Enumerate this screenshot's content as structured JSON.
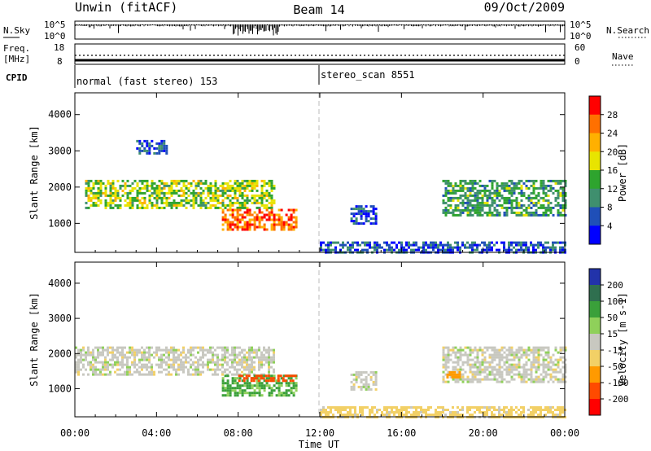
{
  "header": {
    "left_title": "Unwin (fitACF)",
    "center_title": "Beam 14",
    "right_title": "09/Oct/2009"
  },
  "noise_panel": {
    "left_label": "N.Sky",
    "right_label": "N.Search",
    "left_ticks": [
      "10^5",
      "10^0"
    ],
    "right_ticks": [
      "10^5",
      "10^0"
    ]
  },
  "freq_panel": {
    "left_label_1": "Freq.",
    "left_label_2": "[MHz]",
    "right_label": "Nave",
    "left_ticks": [
      "18",
      "8"
    ],
    "right_ticks": [
      "60",
      "0"
    ]
  },
  "cpid_panel": {
    "label": "CPID",
    "segment_1": "normal (fast stereo) 153",
    "segment_2": "stereo_scan 8551"
  },
  "chart_data": [
    {
      "type": "heatmap",
      "name": "Power",
      "ylabel": "Slant Range [km]",
      "colorbar_label": "Power [dB]",
      "y_ticks": [
        1000,
        2000,
        3000,
        4000
      ],
      "ylim": [
        200,
        4600
      ],
      "colorbar_ticks": [
        "28",
        "24",
        "20",
        "16",
        "12",
        "8",
        "4"
      ],
      "colorbar_colors": [
        "#ff0000",
        "#ff7000",
        "#ffb000",
        "#e8e400",
        "#2ea42e",
        "#3f8f6e",
        "#1f4fb8",
        "#0000ff"
      ],
      "regions": [
        {
          "x0": 0.5,
          "x1": 9.8,
          "y0": 1400,
          "y1": 2200,
          "level": 16
        },
        {
          "x0": 3.0,
          "x1": 4.5,
          "y0": 2900,
          "y1": 3300,
          "level": 6
        },
        {
          "x0": 7.2,
          "x1": 10.8,
          "y0": 800,
          "y1": 1400,
          "level": 26
        },
        {
          "x0": 13.5,
          "x1": 14.8,
          "y0": 1000,
          "y1": 1500,
          "level": 6
        },
        {
          "x0": 12.0,
          "x1": 24.0,
          "y0": 200,
          "y1": 500,
          "level": 6
        },
        {
          "x0": 18.0,
          "x1": 24.0,
          "y0": 1200,
          "y1": 2200,
          "level": 12
        }
      ]
    },
    {
      "type": "heatmap",
      "name": "Velocity",
      "ylabel": "Slant Range [km]",
      "colorbar_label": "Velocity [m s-1]",
      "y_ticks": [
        1000,
        2000,
        3000,
        4000
      ],
      "ylim": [
        200,
        4600
      ],
      "colorbar_ticks": [
        "200",
        "100",
        "50",
        "15",
        "-15",
        "-50",
        "-100",
        "-200"
      ],
      "colorbar_colors": [
        "#2233aa",
        "#2f6f4f",
        "#3aa03a",
        "#8fd05a",
        "#c8c8c0",
        "#f2d066",
        "#ff9a00",
        "#ff4a00",
        "#ff0000"
      ],
      "regions": [
        {
          "x0": 0.0,
          "x1": 9.8,
          "y0": 1400,
          "y1": 2200,
          "level": 0
        },
        {
          "x0": 7.2,
          "x1": 10.8,
          "y0": 800,
          "y1": 1400,
          "level": 60
        },
        {
          "x0": 8.0,
          "x1": 10.8,
          "y0": 1200,
          "y1": 1400,
          "level": -150
        },
        {
          "x0": 13.5,
          "x1": 14.8,
          "y0": 1000,
          "y1": 1500,
          "level": 0
        },
        {
          "x0": 18.0,
          "x1": 24.0,
          "y0": 1200,
          "y1": 2200,
          "level": 0
        },
        {
          "x0": 18.2,
          "x1": 18.8,
          "y0": 1300,
          "y1": 1500,
          "level": -70
        },
        {
          "x0": 12.0,
          "x1": 24.0,
          "y0": 200,
          "y1": 500,
          "level": -30
        }
      ]
    }
  ],
  "x_axis": {
    "label": "Time UT",
    "ticks": [
      "00:00",
      "04:00",
      "08:00",
      "12:00",
      "16:00",
      "20:00",
      "00:00"
    ]
  }
}
